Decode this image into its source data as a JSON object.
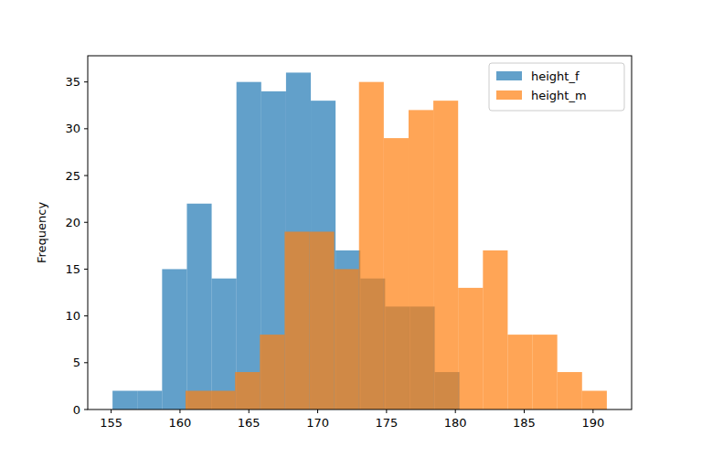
{
  "chart_data": {
    "type": "histogram",
    "y_label": "Frequency",
    "series": [
      {
        "name": "height_f",
        "color": "#1f77b4",
        "bins": [
          155.1,
          156.9,
          158.7,
          160.5,
          162.3,
          164.1,
          165.9,
          167.7,
          169.5,
          171.3,
          173.1,
          174.9,
          176.7,
          178.5,
          180.3
        ],
        "values": [
          2,
          2,
          15,
          22,
          14,
          35,
          34,
          36,
          33,
          17,
          14,
          11,
          11,
          4
        ]
      },
      {
        "name": "height_m",
        "color": "#ff7f0e",
        "bins": [
          160.4,
          162.2,
          164.0,
          165.8,
          167.6,
          169.4,
          171.2,
          173.0,
          174.8,
          176.6,
          178.4,
          180.2,
          182.0,
          183.8,
          185.6,
          187.4,
          189.2,
          191.0
        ],
        "values": [
          2,
          2,
          4,
          8,
          19,
          19,
          15,
          35,
          29,
          32,
          33,
          13,
          17,
          8,
          8,
          4,
          2
        ]
      }
    ],
    "xlim": [
      153.3,
      192.8
    ],
    "ylim": [
      0,
      37.8
    ],
    "xticks": [
      155,
      160,
      165,
      170,
      175,
      180,
      185,
      190
    ],
    "yticks": [
      0,
      5,
      10,
      15,
      20,
      25,
      30,
      35
    ],
    "legend": "upper right"
  }
}
